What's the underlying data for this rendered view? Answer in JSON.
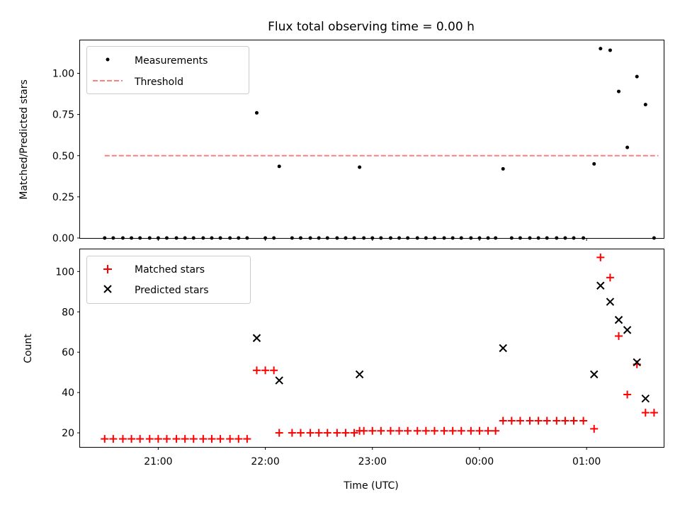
{
  "chart_data": [
    {
      "type": "scatter",
      "title": "Flux total observing time = 0.00 h",
      "xlabel": "",
      "ylabel": "Matched/Predicted stars",
      "ylim": [
        0,
        1.2
      ],
      "yticks": [
        0.0,
        0.25,
        0.5,
        0.75,
        1.0
      ],
      "ytick_labels": [
        "0.00",
        "0.25",
        "0.50",
        "0.75",
        "1.00"
      ],
      "xlim": [
        20.27,
        25.72
      ],
      "xticks": [
        21,
        22,
        23,
        24,
        25
      ],
      "xtick_labels": [
        "",
        "",
        "",
        "",
        ""
      ],
      "legend": {
        "position": "upper-left",
        "entries": [
          "Measurements",
          "Threshold"
        ]
      },
      "threshold": {
        "name": "Threshold",
        "value": 0.5,
        "x_range": [
          20.5,
          25.67
        ],
        "color": "#ff7f7f"
      },
      "series": [
        {
          "name": "Measurements",
          "marker": "dot",
          "color": "#000000",
          "x": [
            20.5,
            20.58,
            20.67,
            20.75,
            20.83,
            20.92,
            21.0,
            21.08,
            21.17,
            21.25,
            21.33,
            21.42,
            21.5,
            21.58,
            21.67,
            21.75,
            21.83,
            21.92,
            22.0,
            22.08,
            22.13,
            22.25,
            22.33,
            22.42,
            22.5,
            22.58,
            22.67,
            22.75,
            22.83,
            22.88,
            22.92,
            23.0,
            23.08,
            23.17,
            23.25,
            23.33,
            23.42,
            23.5,
            23.58,
            23.67,
            23.75,
            23.83,
            23.92,
            24.0,
            24.08,
            24.15,
            24.22,
            24.3,
            24.38,
            24.47,
            24.55,
            24.63,
            24.72,
            24.8,
            24.88,
            24.97,
            25.07,
            25.13,
            25.22,
            25.3,
            25.38,
            25.47,
            25.55,
            25.63
          ],
          "y": [
            0,
            0,
            0,
            0,
            0,
            0,
            0,
            0,
            0,
            0,
            0,
            0,
            0,
            0,
            0,
            0,
            0,
            0.76,
            0,
            0,
            0.435,
            0,
            0,
            0,
            0,
            0,
            0,
            0,
            0,
            0.43,
            0,
            0,
            0,
            0,
            0,
            0,
            0,
            0,
            0,
            0,
            0,
            0,
            0,
            0,
            0,
            0,
            0.42,
            0,
            0,
            0,
            0,
            0,
            0,
            0,
            0,
            0,
            0.45,
            1.15,
            1.14,
            0.89,
            0.55,
            0.98,
            0.81,
            0
          ]
        }
      ]
    },
    {
      "type": "scatter",
      "title": "",
      "xlabel": "Time (UTC)",
      "ylabel": "Count",
      "ylim": [
        13,
        111
      ],
      "yticks": [
        20,
        40,
        60,
        80,
        100
      ],
      "ytick_labels": [
        "20",
        "40",
        "60",
        "80",
        "100"
      ],
      "xlim": [
        20.27,
        25.72
      ],
      "xticks": [
        21,
        22,
        23,
        24,
        25
      ],
      "xtick_labels": [
        "21:00",
        "22:00",
        "23:00",
        "00:00",
        "01:00"
      ],
      "legend": {
        "position": "upper-left",
        "entries": [
          "Matched stars",
          "Predicted stars"
        ]
      },
      "series": [
        {
          "name": "Matched stars",
          "marker": "plus",
          "color": "#ff0000",
          "x": [
            20.5,
            20.58,
            20.67,
            20.75,
            20.83,
            20.92,
            21.0,
            21.08,
            21.17,
            21.25,
            21.33,
            21.42,
            21.5,
            21.58,
            21.67,
            21.75,
            21.83,
            21.92,
            22.0,
            22.08,
            22.13,
            22.25,
            22.33,
            22.42,
            22.5,
            22.58,
            22.67,
            22.75,
            22.83,
            22.88,
            22.92,
            23.0,
            23.08,
            23.17,
            23.25,
            23.33,
            23.42,
            23.5,
            23.58,
            23.67,
            23.75,
            23.83,
            23.92,
            24.0,
            24.08,
            24.15,
            24.22,
            24.3,
            24.38,
            24.47,
            24.55,
            24.63,
            24.72,
            24.8,
            24.88,
            24.97,
            25.07,
            25.13,
            25.22,
            25.3,
            25.38,
            25.47,
            25.55,
            25.63
          ],
          "y": [
            17,
            17,
            17,
            17,
            17,
            17,
            17,
            17,
            17,
            17,
            17,
            17,
            17,
            17,
            17,
            17,
            17,
            51,
            51,
            51,
            20,
            20,
            20,
            20,
            20,
            20,
            20,
            20,
            20,
            21,
            21,
            21,
            21,
            21,
            21,
            21,
            21,
            21,
            21,
            21,
            21,
            21,
            21,
            21,
            21,
            21,
            26,
            26,
            26,
            26,
            26,
            26,
            26,
            26,
            26,
            26,
            22,
            107,
            97,
            68,
            39,
            54,
            30,
            30
          ]
        },
        {
          "name": "Predicted stars",
          "marker": "x",
          "color": "#000000",
          "x": [
            21.92,
            22.13,
            22.88,
            24.22,
            25.07,
            25.13,
            25.22,
            25.3,
            25.38,
            25.47,
            25.55
          ],
          "y": [
            67,
            46,
            49,
            62,
            49,
            93,
            85,
            76,
            71,
            55,
            37
          ]
        }
      ]
    }
  ]
}
